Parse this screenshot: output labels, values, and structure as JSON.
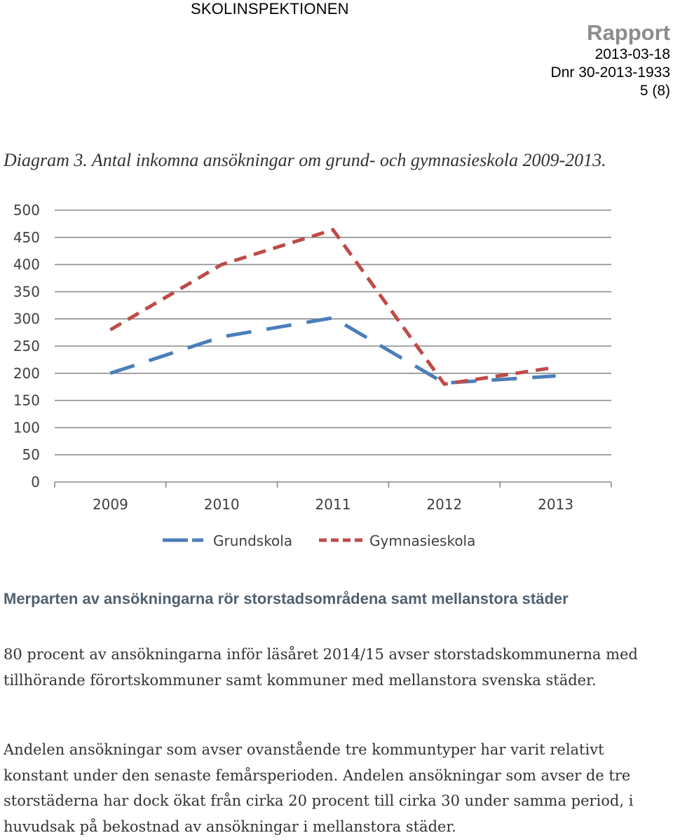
{
  "header": {
    "organization": "SKOLINSPEKTIONEN",
    "doc_type": "Rapport",
    "date": "2013-03-18",
    "dnr": "Dnr 30-2013-1933",
    "page": "5 (8)"
  },
  "caption": "Diagram 3. Antal inkomna ansökningar om grund- och gymnasieskola 2009-2013.",
  "chart_data": {
    "type": "line",
    "x": [
      "2009",
      "2010",
      "2011",
      "2012",
      "2013"
    ],
    "yticks": [
      "0",
      "50",
      "100",
      "150",
      "200",
      "250",
      "300",
      "350",
      "400",
      "450",
      "500"
    ],
    "ylim": [
      0,
      500
    ],
    "grid": true,
    "legend_position": "bottom",
    "series": [
      {
        "name": "Grundskola",
        "values": [
          200,
          267,
          302,
          182,
          195
        ],
        "color": "#4a7ebb",
        "dash": "long-dash"
      },
      {
        "name": "Gymnasieskola",
        "values": [
          280,
          400,
          464,
          180,
          211
        ],
        "color": "#be4b48",
        "dash": "dash"
      }
    ]
  },
  "section": {
    "heading": "Merparten av ansökningarna rör storstadsområdena samt mellanstora städer",
    "paragraphs": [
      "80 procent av ansökningarna inför läsåret 2014/15 avser storstadskommunerna med tillhörande förortskommuner samt kommuner med mellanstora svenska städer.",
      "Andelen ansökningar som avser ovanstående tre kommuntyper har varit relativt konstant under den senaste femårsperioden. Andelen ansökningar som avser de tre storstäderna har dock ökat från cirka 20 procent till cirka 30 under samma period, i huvudsak på bekostnad av ansökningar i mellanstora städer."
    ]
  }
}
